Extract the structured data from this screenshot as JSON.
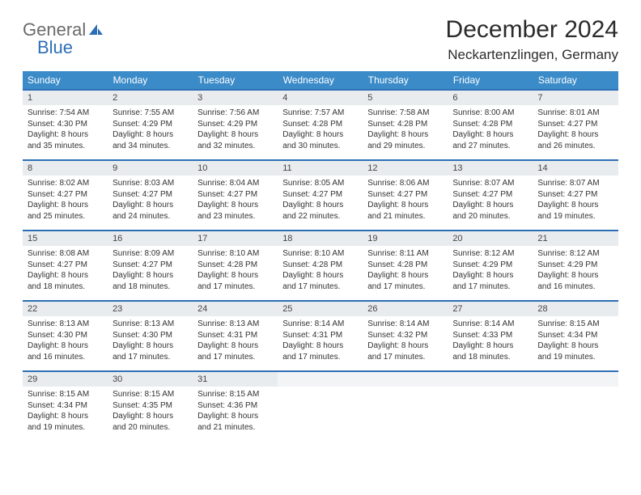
{
  "logo": {
    "word1": "General",
    "word2": "Blue",
    "gray": "#6b6b6b",
    "blue": "#2d6fb5"
  },
  "title": "December 2024",
  "location": "Neckartenzlingen, Germany",
  "colors": {
    "header_bg": "#3b8bc8",
    "header_fg": "#ffffff",
    "row_divider": "#2d6fb5",
    "daynum_bg": "#e9ecef",
    "body_text": "#333333",
    "page_bg": "#ffffff"
  },
  "fonts": {
    "title_pt": 30,
    "location_pt": 17,
    "dow_pt": 12,
    "daynum_pt": 11,
    "body_pt": 10
  },
  "days_of_week": [
    "Sunday",
    "Monday",
    "Tuesday",
    "Wednesday",
    "Thursday",
    "Friday",
    "Saturday"
  ],
  "weeks": [
    [
      {
        "n": "1",
        "sr": "7:54 AM",
        "ss": "4:30 PM",
        "dl": "8 hours and 35 minutes."
      },
      {
        "n": "2",
        "sr": "7:55 AM",
        "ss": "4:29 PM",
        "dl": "8 hours and 34 minutes."
      },
      {
        "n": "3",
        "sr": "7:56 AM",
        "ss": "4:29 PM",
        "dl": "8 hours and 32 minutes."
      },
      {
        "n": "4",
        "sr": "7:57 AM",
        "ss": "4:28 PM",
        "dl": "8 hours and 30 minutes."
      },
      {
        "n": "5",
        "sr": "7:58 AM",
        "ss": "4:28 PM",
        "dl": "8 hours and 29 minutes."
      },
      {
        "n": "6",
        "sr": "8:00 AM",
        "ss": "4:28 PM",
        "dl": "8 hours and 27 minutes."
      },
      {
        "n": "7",
        "sr": "8:01 AM",
        "ss": "4:27 PM",
        "dl": "8 hours and 26 minutes."
      }
    ],
    [
      {
        "n": "8",
        "sr": "8:02 AM",
        "ss": "4:27 PM",
        "dl": "8 hours and 25 minutes."
      },
      {
        "n": "9",
        "sr": "8:03 AM",
        "ss": "4:27 PM",
        "dl": "8 hours and 24 minutes."
      },
      {
        "n": "10",
        "sr": "8:04 AM",
        "ss": "4:27 PM",
        "dl": "8 hours and 23 minutes."
      },
      {
        "n": "11",
        "sr": "8:05 AM",
        "ss": "4:27 PM",
        "dl": "8 hours and 22 minutes."
      },
      {
        "n": "12",
        "sr": "8:06 AM",
        "ss": "4:27 PM",
        "dl": "8 hours and 21 minutes."
      },
      {
        "n": "13",
        "sr": "8:07 AM",
        "ss": "4:27 PM",
        "dl": "8 hours and 20 minutes."
      },
      {
        "n": "14",
        "sr": "8:07 AM",
        "ss": "4:27 PM",
        "dl": "8 hours and 19 minutes."
      }
    ],
    [
      {
        "n": "15",
        "sr": "8:08 AM",
        "ss": "4:27 PM",
        "dl": "8 hours and 18 minutes."
      },
      {
        "n": "16",
        "sr": "8:09 AM",
        "ss": "4:27 PM",
        "dl": "8 hours and 18 minutes."
      },
      {
        "n": "17",
        "sr": "8:10 AM",
        "ss": "4:28 PM",
        "dl": "8 hours and 17 minutes."
      },
      {
        "n": "18",
        "sr": "8:10 AM",
        "ss": "4:28 PM",
        "dl": "8 hours and 17 minutes."
      },
      {
        "n": "19",
        "sr": "8:11 AM",
        "ss": "4:28 PM",
        "dl": "8 hours and 17 minutes."
      },
      {
        "n": "20",
        "sr": "8:12 AM",
        "ss": "4:29 PM",
        "dl": "8 hours and 17 minutes."
      },
      {
        "n": "21",
        "sr": "8:12 AM",
        "ss": "4:29 PM",
        "dl": "8 hours and 16 minutes."
      }
    ],
    [
      {
        "n": "22",
        "sr": "8:13 AM",
        "ss": "4:30 PM",
        "dl": "8 hours and 16 minutes."
      },
      {
        "n": "23",
        "sr": "8:13 AM",
        "ss": "4:30 PM",
        "dl": "8 hours and 17 minutes."
      },
      {
        "n": "24",
        "sr": "8:13 AM",
        "ss": "4:31 PM",
        "dl": "8 hours and 17 minutes."
      },
      {
        "n": "25",
        "sr": "8:14 AM",
        "ss": "4:31 PM",
        "dl": "8 hours and 17 minutes."
      },
      {
        "n": "26",
        "sr": "8:14 AM",
        "ss": "4:32 PM",
        "dl": "8 hours and 17 minutes."
      },
      {
        "n": "27",
        "sr": "8:14 AM",
        "ss": "4:33 PM",
        "dl": "8 hours and 18 minutes."
      },
      {
        "n": "28",
        "sr": "8:15 AM",
        "ss": "4:34 PM",
        "dl": "8 hours and 19 minutes."
      }
    ],
    [
      {
        "n": "29",
        "sr": "8:15 AM",
        "ss": "4:34 PM",
        "dl": "8 hours and 19 minutes."
      },
      {
        "n": "30",
        "sr": "8:15 AM",
        "ss": "4:35 PM",
        "dl": "8 hours and 20 minutes."
      },
      {
        "n": "31",
        "sr": "8:15 AM",
        "ss": "4:36 PM",
        "dl": "8 hours and 21 minutes."
      },
      null,
      null,
      null,
      null
    ]
  ],
  "labels": {
    "sunrise": "Sunrise:",
    "sunset": "Sunset:",
    "daylight": "Daylight:"
  }
}
